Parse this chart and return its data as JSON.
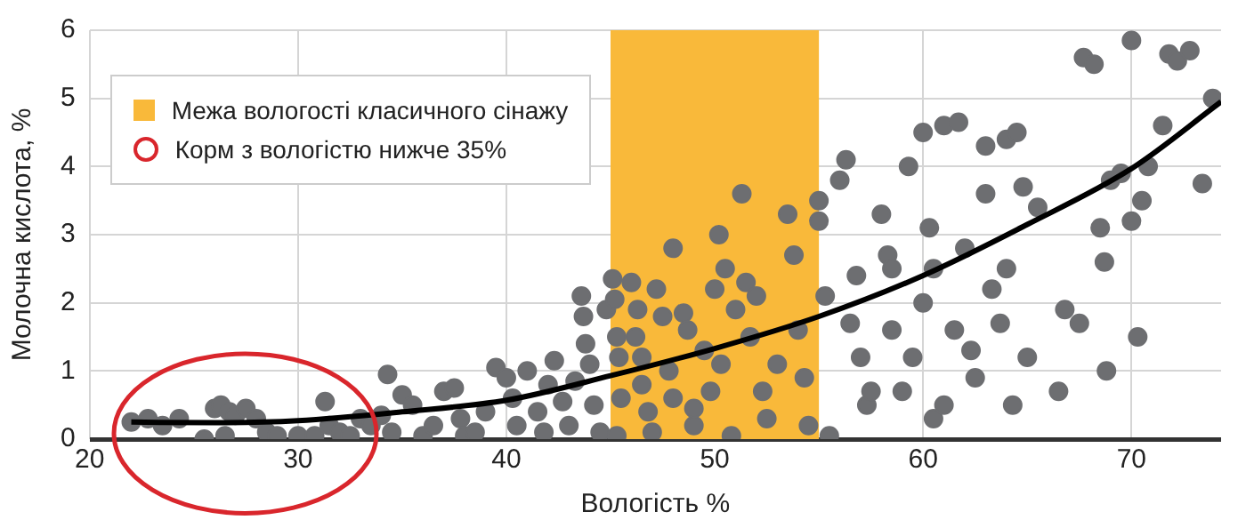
{
  "chart_data": {
    "type": "scatter",
    "xlabel": "Вологість %",
    "ylabel": "Молочна кислота, %",
    "xlim": [
      20,
      74.3
    ],
    "xticks": [
      20,
      30,
      40,
      50,
      60,
      70
    ],
    "ylim": [
      0,
      6
    ],
    "yticks": [
      0,
      1,
      2,
      3,
      4,
      5,
      6
    ],
    "grid": true,
    "legend": "top left",
    "marker": "circle",
    "bands": [
      {
        "axis": "x",
        "from": 45,
        "to": 55,
        "label": "Межа вологості класичного сінажу",
        "color": "#f9b93a"
      }
    ],
    "annotations": [
      "Корм з вологістю нижче 35%"
    ],
    "series": [
      {
        "color": "#6d6e71",
        "x": [
          22,
          22.8,
          23.5,
          24.3,
          25.5,
          26,
          26.3,
          26.7,
          27,
          26.5,
          27.5,
          28,
          28.5,
          29,
          30,
          30.8,
          31.3,
          31.5,
          32,
          32.5,
          33,
          33.5,
          34,
          34.5,
          34.3,
          35,
          35.5,
          36,
          36.5,
          37,
          37.5,
          37.8,
          38,
          38.5,
          39,
          39.5,
          40,
          40.3,
          40.5,
          41,
          41.5,
          41.8,
          42,
          42.3,
          42.7,
          43,
          43.3,
          43.6,
          43.7,
          43.8,
          44,
          44.2,
          44.5,
          44.8,
          45.1,
          45.2,
          45.3,
          45.4,
          45.5,
          45.3,
          46,
          46.3,
          46.2,
          46.5,
          46.5,
          46.8,
          47,
          47.2,
          47.5,
          47.8,
          48,
          48,
          48.5,
          48.7,
          49,
          49,
          49.5,
          49.8,
          50.2,
          50,
          50.5,
          50.3,
          50.8,
          51,
          51.3,
          51.5,
          51.7,
          52,
          52.3,
          52.5,
          53,
          53.5,
          53.8,
          54,
          54.3,
          54.5,
          55,
          55,
          55.3,
          55.5,
          56,
          56.3,
          56.5,
          56.8,
          57,
          57.3,
          57.5,
          58,
          58.3,
          58.5,
          58.5,
          59,
          59.3,
          59.5,
          60,
          60,
          60.3,
          60.5,
          60.5,
          61,
          61,
          61.5,
          61.7,
          62,
          62.3,
          62.5,
          63,
          63,
          63.3,
          63.7,
          64,
          64,
          64.3,
          64.5,
          64.8,
          65,
          65.5,
          66.5,
          66.8,
          67.5,
          67.7,
          68.2,
          68.5,
          68.7,
          68.8,
          69,
          69.5,
          70,
          70,
          70.3,
          70.5,
          70.8,
          71.5,
          71.8,
          72.2,
          72.8,
          73.4,
          73.9
        ],
        "values": [
          0.25,
          0.3,
          0.2,
          0.3,
          0,
          0.45,
          0.5,
          0.4,
          0.35,
          0.05,
          0.45,
          0.3,
          0.1,
          0.05,
          0.05,
          0.05,
          0.55,
          0.2,
          0.1,
          0.05,
          0.3,
          0.2,
          0.35,
          0.1,
          0.95,
          0.65,
          0.5,
          0.05,
          0.2,
          0.7,
          0.75,
          0.3,
          0.05,
          0.1,
          0.4,
          1.05,
          0.9,
          0.6,
          0.2,
          1,
          0.4,
          0.1,
          0.8,
          1.15,
          0.55,
          0.2,
          0.85,
          2.1,
          1.8,
          1.4,
          1.1,
          0.5,
          0.1,
          1.9,
          2.35,
          2.05,
          1.5,
          1.2,
          0.6,
          0.05,
          2.3,
          1.9,
          1.5,
          1.2,
          0.8,
          0.4,
          0.1,
          2.2,
          1.8,
          1,
          0.6,
          2.8,
          1.85,
          1.6,
          0.2,
          0.45,
          1.3,
          0.7,
          3,
          2.2,
          2.5,
          1.1,
          0.05,
          1.9,
          3.6,
          2.3,
          1.5,
          2.1,
          0.7,
          0.3,
          1.1,
          3.3,
          2.7,
          1.6,
          0.9,
          0.2,
          3.2,
          3.5,
          2.1,
          0.05,
          3.8,
          4.1,
          1.7,
          2.4,
          1.2,
          0.5,
          0.7,
          3.3,
          2.7,
          2.5,
          1.6,
          0.7,
          4,
          1.2,
          2,
          4.5,
          3.1,
          2.5,
          0.3,
          4.6,
          0.5,
          1.6,
          4.65,
          2.8,
          1.3,
          0.9,
          4.3,
          3.6,
          2.2,
          1.7,
          4.4,
          2.5,
          0.5,
          4.5,
          3.7,
          1.2,
          3.4,
          0.7,
          1.9,
          1.7,
          5.6,
          5.5,
          3.1,
          2.6,
          1,
          3.8,
          3.9,
          5.85,
          3.2,
          1.5,
          3.5,
          4,
          4.6,
          5.65,
          5.55,
          5.7,
          3.75,
          5
        ]
      },
      {
        "type": "line",
        "color": "#000000",
        "line_style": "solid",
        "marker": "none",
        "x": [
          22,
          26,
          30,
          35,
          40,
          45,
          50,
          55,
          60,
          65,
          70,
          74.3
        ],
        "values": [
          0.25,
          0.24,
          0.27,
          0.4,
          0.57,
          0.93,
          1.33,
          1.8,
          2.4,
          3.15,
          3.97,
          4.95
        ]
      }
    ]
  }
}
